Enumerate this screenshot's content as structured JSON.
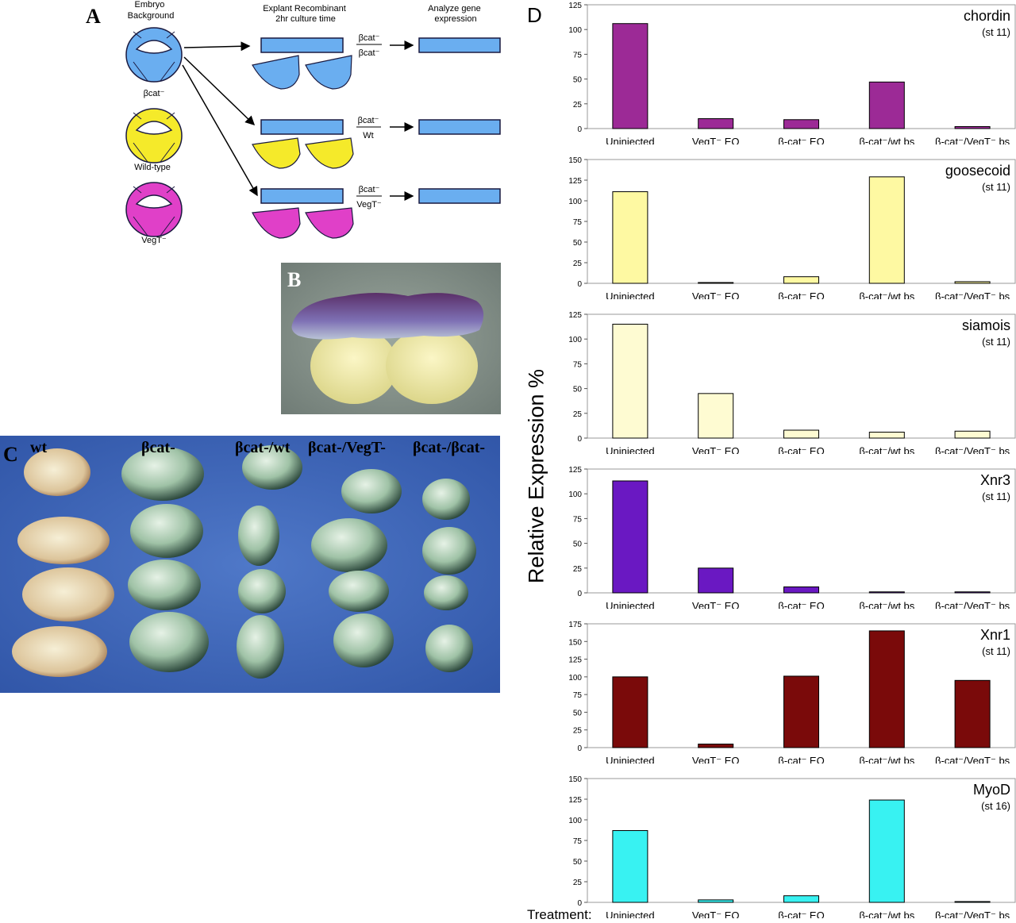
{
  "panels": {
    "a": "A",
    "b": "B",
    "c": "C",
    "d": "D"
  },
  "schematic": {
    "col1_header": "Embryo\nBackground",
    "col2_header": "Explant Recombinant\n2hr culture time",
    "col3_header": "Analyze gene\nexpression",
    "embryo_labels": [
      "βcat⁻",
      "Wild-type",
      "VegT⁻"
    ],
    "fractions": [
      {
        "top": "βcat⁻",
        "bottom": "βcat⁻"
      },
      {
        "top": "βcat⁻",
        "bottom": "Wt"
      },
      {
        "top": "βcat⁻",
        "bottom": "VegT⁻"
      }
    ],
    "colors": {
      "blue": "#6aaef0",
      "yellow": "#f5ea2a",
      "magenta": "#e040c8",
      "outline": "#1a1a40"
    }
  },
  "photo_c": {
    "labels": [
      "wt",
      "βcat-",
      "βcat-/wt",
      "βcat-/VegT-",
      "βcat-/βcat-"
    ],
    "background": "#3f67bd"
  },
  "d_panel": {
    "ylabel": "Relative Expression %",
    "treatment_label": "Treatment:"
  },
  "chart_data": [
    {
      "type": "bar",
      "title": "chordin",
      "subtitle": "(st 11)",
      "categories": [
        "Uninjected",
        "VegT⁻ EQ",
        "β-cat⁻ EQ",
        "β-cat⁻/wt bs",
        "β-cat⁻/VegT⁻ bs"
      ],
      "values": [
        106,
        10,
        9,
        47,
        2
      ],
      "ylim": [
        0,
        125
      ],
      "yticks": [
        0,
        25,
        50,
        75,
        100,
        125
      ],
      "color": "#9c2a96"
    },
    {
      "type": "bar",
      "title": "goosecoid",
      "subtitle": "(st 11)",
      "categories": [
        "Uninjected",
        "VegT⁻ EQ",
        "β-cat⁻ EQ",
        "β-cat⁻/wt bs",
        "β-cat⁻/VegT⁻ bs"
      ],
      "values": [
        111,
        1,
        8,
        129,
        2
      ],
      "ylim": [
        0,
        150
      ],
      "yticks": [
        0,
        25,
        50,
        75,
        100,
        125,
        150
      ],
      "color": "#fef9a2"
    },
    {
      "type": "bar",
      "title": "siamois",
      "subtitle": "(st 11)",
      "categories": [
        "Uninjected",
        "VegT⁻ EQ",
        "β-cat⁻ EQ",
        "β-cat⁻/wt bs",
        "β-cat⁻/VegT⁻ bs"
      ],
      "values": [
        115,
        45,
        8,
        6,
        7
      ],
      "ylim": [
        0,
        125
      ],
      "yticks": [
        0,
        25,
        50,
        75,
        100,
        125
      ],
      "color": "#fefbd2"
    },
    {
      "type": "bar",
      "title": "Xnr3",
      "subtitle": "(st 11)",
      "categories": [
        "Uninjected",
        "VegT⁻ EQ",
        "β-cat⁻ EQ",
        "β-cat⁻/wt bs",
        "β-cat⁻/VegT⁻ bs"
      ],
      "values": [
        113,
        25,
        6,
        1,
        1
      ],
      "ylim": [
        0,
        125
      ],
      "yticks": [
        0,
        25,
        50,
        75,
        100,
        125
      ],
      "color": "#6a18c2"
    },
    {
      "type": "bar",
      "title": "Xnr1",
      "subtitle": "(st 11)",
      "categories": [
        "Uninjected",
        "VegT⁻ EQ",
        "β-cat⁻ EQ",
        "β-cat⁻/wt bs",
        "β-cat⁻/VegT⁻ bs"
      ],
      "values": [
        100,
        5,
        101,
        165,
        95
      ],
      "ylim": [
        0,
        175
      ],
      "yticks": [
        0,
        25,
        50,
        75,
        100,
        125,
        150,
        175
      ],
      "color": "#7a0a0a"
    },
    {
      "type": "bar",
      "title": "MyoD",
      "subtitle": "(st 16)",
      "categories": [
        "Uninjected",
        "VegT⁻ EQ",
        "β-cat⁻ EQ",
        "β-cat⁻/wt bs",
        "β-cat⁻/VegT⁻ bs"
      ],
      "values": [
        87,
        3,
        8,
        124,
        1
      ],
      "ylim": [
        0,
        150
      ],
      "yticks": [
        0,
        25,
        50,
        75,
        100,
        125,
        150
      ],
      "color": "#38f2f2"
    }
  ]
}
